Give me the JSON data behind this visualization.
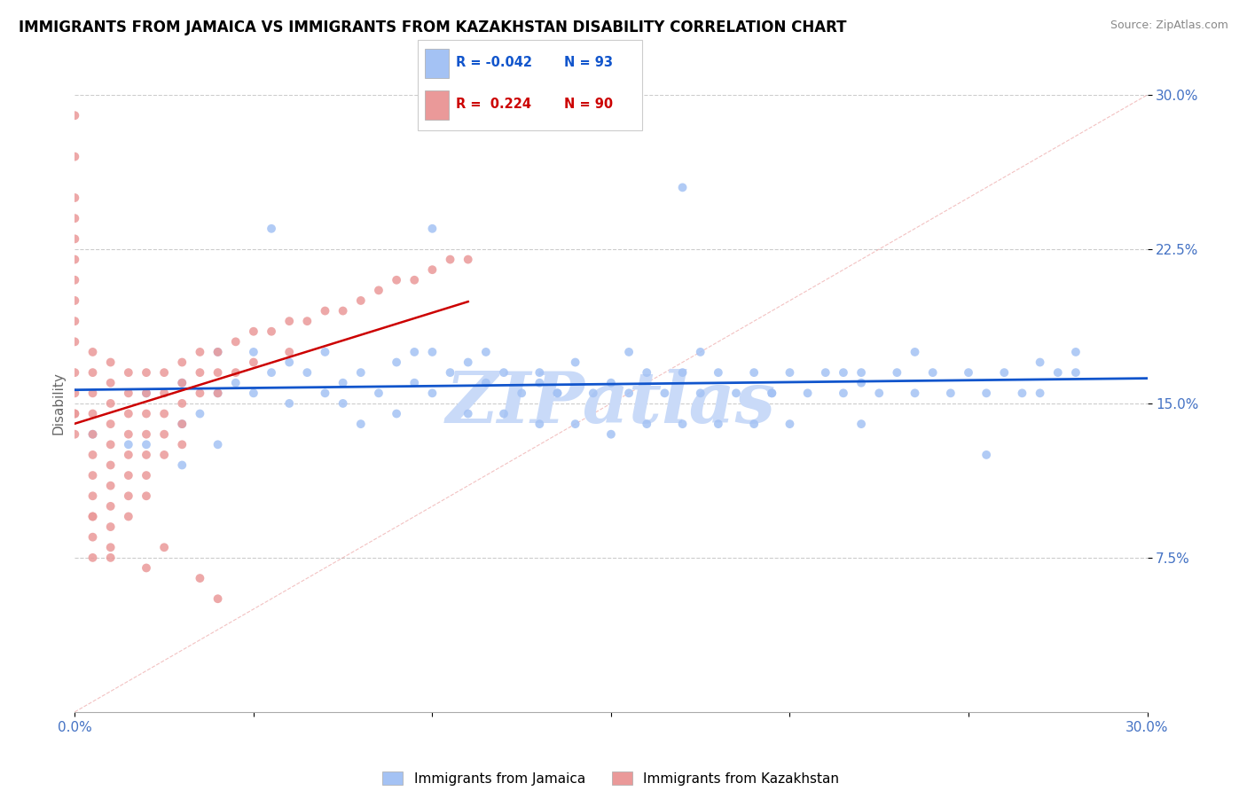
{
  "title": "IMMIGRANTS FROM JAMAICA VS IMMIGRANTS FROM KAZAKHSTAN DISABILITY CORRELATION CHART",
  "source": "Source: ZipAtlas.com",
  "ylabel": "Disability",
  "xlim": [
    0.0,
    0.3
  ],
  "ylim": [
    0.0,
    0.3
  ],
  "legend_r_blue": "-0.042",
  "legend_n_blue": "93",
  "legend_r_pink": "0.224",
  "legend_n_pink": "90",
  "blue_color": "#a4c2f4",
  "pink_color": "#ea9999",
  "blue_line_color": "#1155cc",
  "pink_line_color": "#cc0000",
  "axis_label_color": "#4472c4",
  "watermark_color": "#c9daf8",
  "blue_scatter_x": [
    0.005,
    0.02,
    0.02,
    0.03,
    0.03,
    0.03,
    0.04,
    0.04,
    0.04,
    0.045,
    0.05,
    0.05,
    0.055,
    0.06,
    0.06,
    0.065,
    0.07,
    0.07,
    0.075,
    0.08,
    0.08,
    0.085,
    0.09,
    0.09,
    0.095,
    0.1,
    0.1,
    0.105,
    0.11,
    0.11,
    0.115,
    0.12,
    0.12,
    0.125,
    0.13,
    0.13,
    0.135,
    0.14,
    0.14,
    0.145,
    0.15,
    0.15,
    0.155,
    0.16,
    0.16,
    0.165,
    0.17,
    0.17,
    0.175,
    0.18,
    0.18,
    0.185,
    0.19,
    0.19,
    0.195,
    0.2,
    0.2,
    0.205,
    0.21,
    0.215,
    0.22,
    0.22,
    0.225,
    0.23,
    0.235,
    0.24,
    0.245,
    0.25,
    0.255,
    0.26,
    0.265,
    0.27,
    0.27,
    0.28,
    0.1,
    0.13,
    0.17,
    0.22,
    0.28,
    0.015,
    0.035,
    0.055,
    0.075,
    0.095,
    0.115,
    0.135,
    0.155,
    0.175,
    0.195,
    0.215,
    0.235,
    0.255,
    0.275
  ],
  "blue_scatter_y": [
    0.135,
    0.155,
    0.13,
    0.16,
    0.14,
    0.12,
    0.175,
    0.155,
    0.13,
    0.16,
    0.175,
    0.155,
    0.165,
    0.17,
    0.15,
    0.165,
    0.175,
    0.155,
    0.16,
    0.165,
    0.14,
    0.155,
    0.17,
    0.145,
    0.16,
    0.175,
    0.155,
    0.165,
    0.17,
    0.145,
    0.16,
    0.165,
    0.145,
    0.155,
    0.165,
    0.14,
    0.155,
    0.17,
    0.14,
    0.155,
    0.16,
    0.135,
    0.155,
    0.165,
    0.14,
    0.155,
    0.165,
    0.14,
    0.155,
    0.165,
    0.14,
    0.155,
    0.165,
    0.14,
    0.155,
    0.165,
    0.14,
    0.155,
    0.165,
    0.155,
    0.165,
    0.14,
    0.155,
    0.165,
    0.155,
    0.165,
    0.155,
    0.165,
    0.155,
    0.165,
    0.155,
    0.17,
    0.155,
    0.165,
    0.235,
    0.16,
    0.255,
    0.16,
    0.175,
    0.13,
    0.145,
    0.235,
    0.15,
    0.175,
    0.175,
    0.155,
    0.175,
    0.175,
    0.155,
    0.165,
    0.175,
    0.125,
    0.165
  ],
  "pink_scatter_x": [
    0.0,
    0.0,
    0.0,
    0.0,
    0.0,
    0.0,
    0.0,
    0.0,
    0.0,
    0.0,
    0.0,
    0.0,
    0.0,
    0.0,
    0.005,
    0.005,
    0.005,
    0.005,
    0.005,
    0.005,
    0.005,
    0.005,
    0.005,
    0.005,
    0.005,
    0.01,
    0.01,
    0.01,
    0.01,
    0.01,
    0.01,
    0.01,
    0.01,
    0.01,
    0.01,
    0.015,
    0.015,
    0.015,
    0.015,
    0.015,
    0.015,
    0.015,
    0.015,
    0.02,
    0.02,
    0.02,
    0.02,
    0.02,
    0.02,
    0.02,
    0.025,
    0.025,
    0.025,
    0.025,
    0.025,
    0.03,
    0.03,
    0.03,
    0.03,
    0.03,
    0.035,
    0.035,
    0.035,
    0.04,
    0.04,
    0.04,
    0.045,
    0.045,
    0.05,
    0.05,
    0.055,
    0.06,
    0.06,
    0.065,
    0.07,
    0.075,
    0.08,
    0.085,
    0.09,
    0.095,
    0.1,
    0.105,
    0.11,
    0.0,
    0.005,
    0.01,
    0.02,
    0.025,
    0.035,
    0.04
  ],
  "pink_scatter_y": [
    0.29,
    0.27,
    0.25,
    0.24,
    0.23,
    0.22,
    0.21,
    0.2,
    0.19,
    0.18,
    0.165,
    0.155,
    0.145,
    0.135,
    0.175,
    0.165,
    0.155,
    0.145,
    0.135,
    0.125,
    0.115,
    0.105,
    0.095,
    0.085,
    0.075,
    0.17,
    0.16,
    0.15,
    0.14,
    0.13,
    0.12,
    0.11,
    0.1,
    0.09,
    0.08,
    0.165,
    0.155,
    0.145,
    0.135,
    0.125,
    0.115,
    0.105,
    0.095,
    0.165,
    0.155,
    0.145,
    0.135,
    0.125,
    0.115,
    0.105,
    0.165,
    0.155,
    0.145,
    0.135,
    0.125,
    0.17,
    0.16,
    0.15,
    0.14,
    0.13,
    0.175,
    0.165,
    0.155,
    0.175,
    0.165,
    0.155,
    0.18,
    0.165,
    0.185,
    0.17,
    0.185,
    0.19,
    0.175,
    0.19,
    0.195,
    0.195,
    0.2,
    0.205,
    0.21,
    0.21,
    0.215,
    0.22,
    0.22,
    0.145,
    0.095,
    0.075,
    0.07,
    0.08,
    0.065,
    0.055
  ]
}
